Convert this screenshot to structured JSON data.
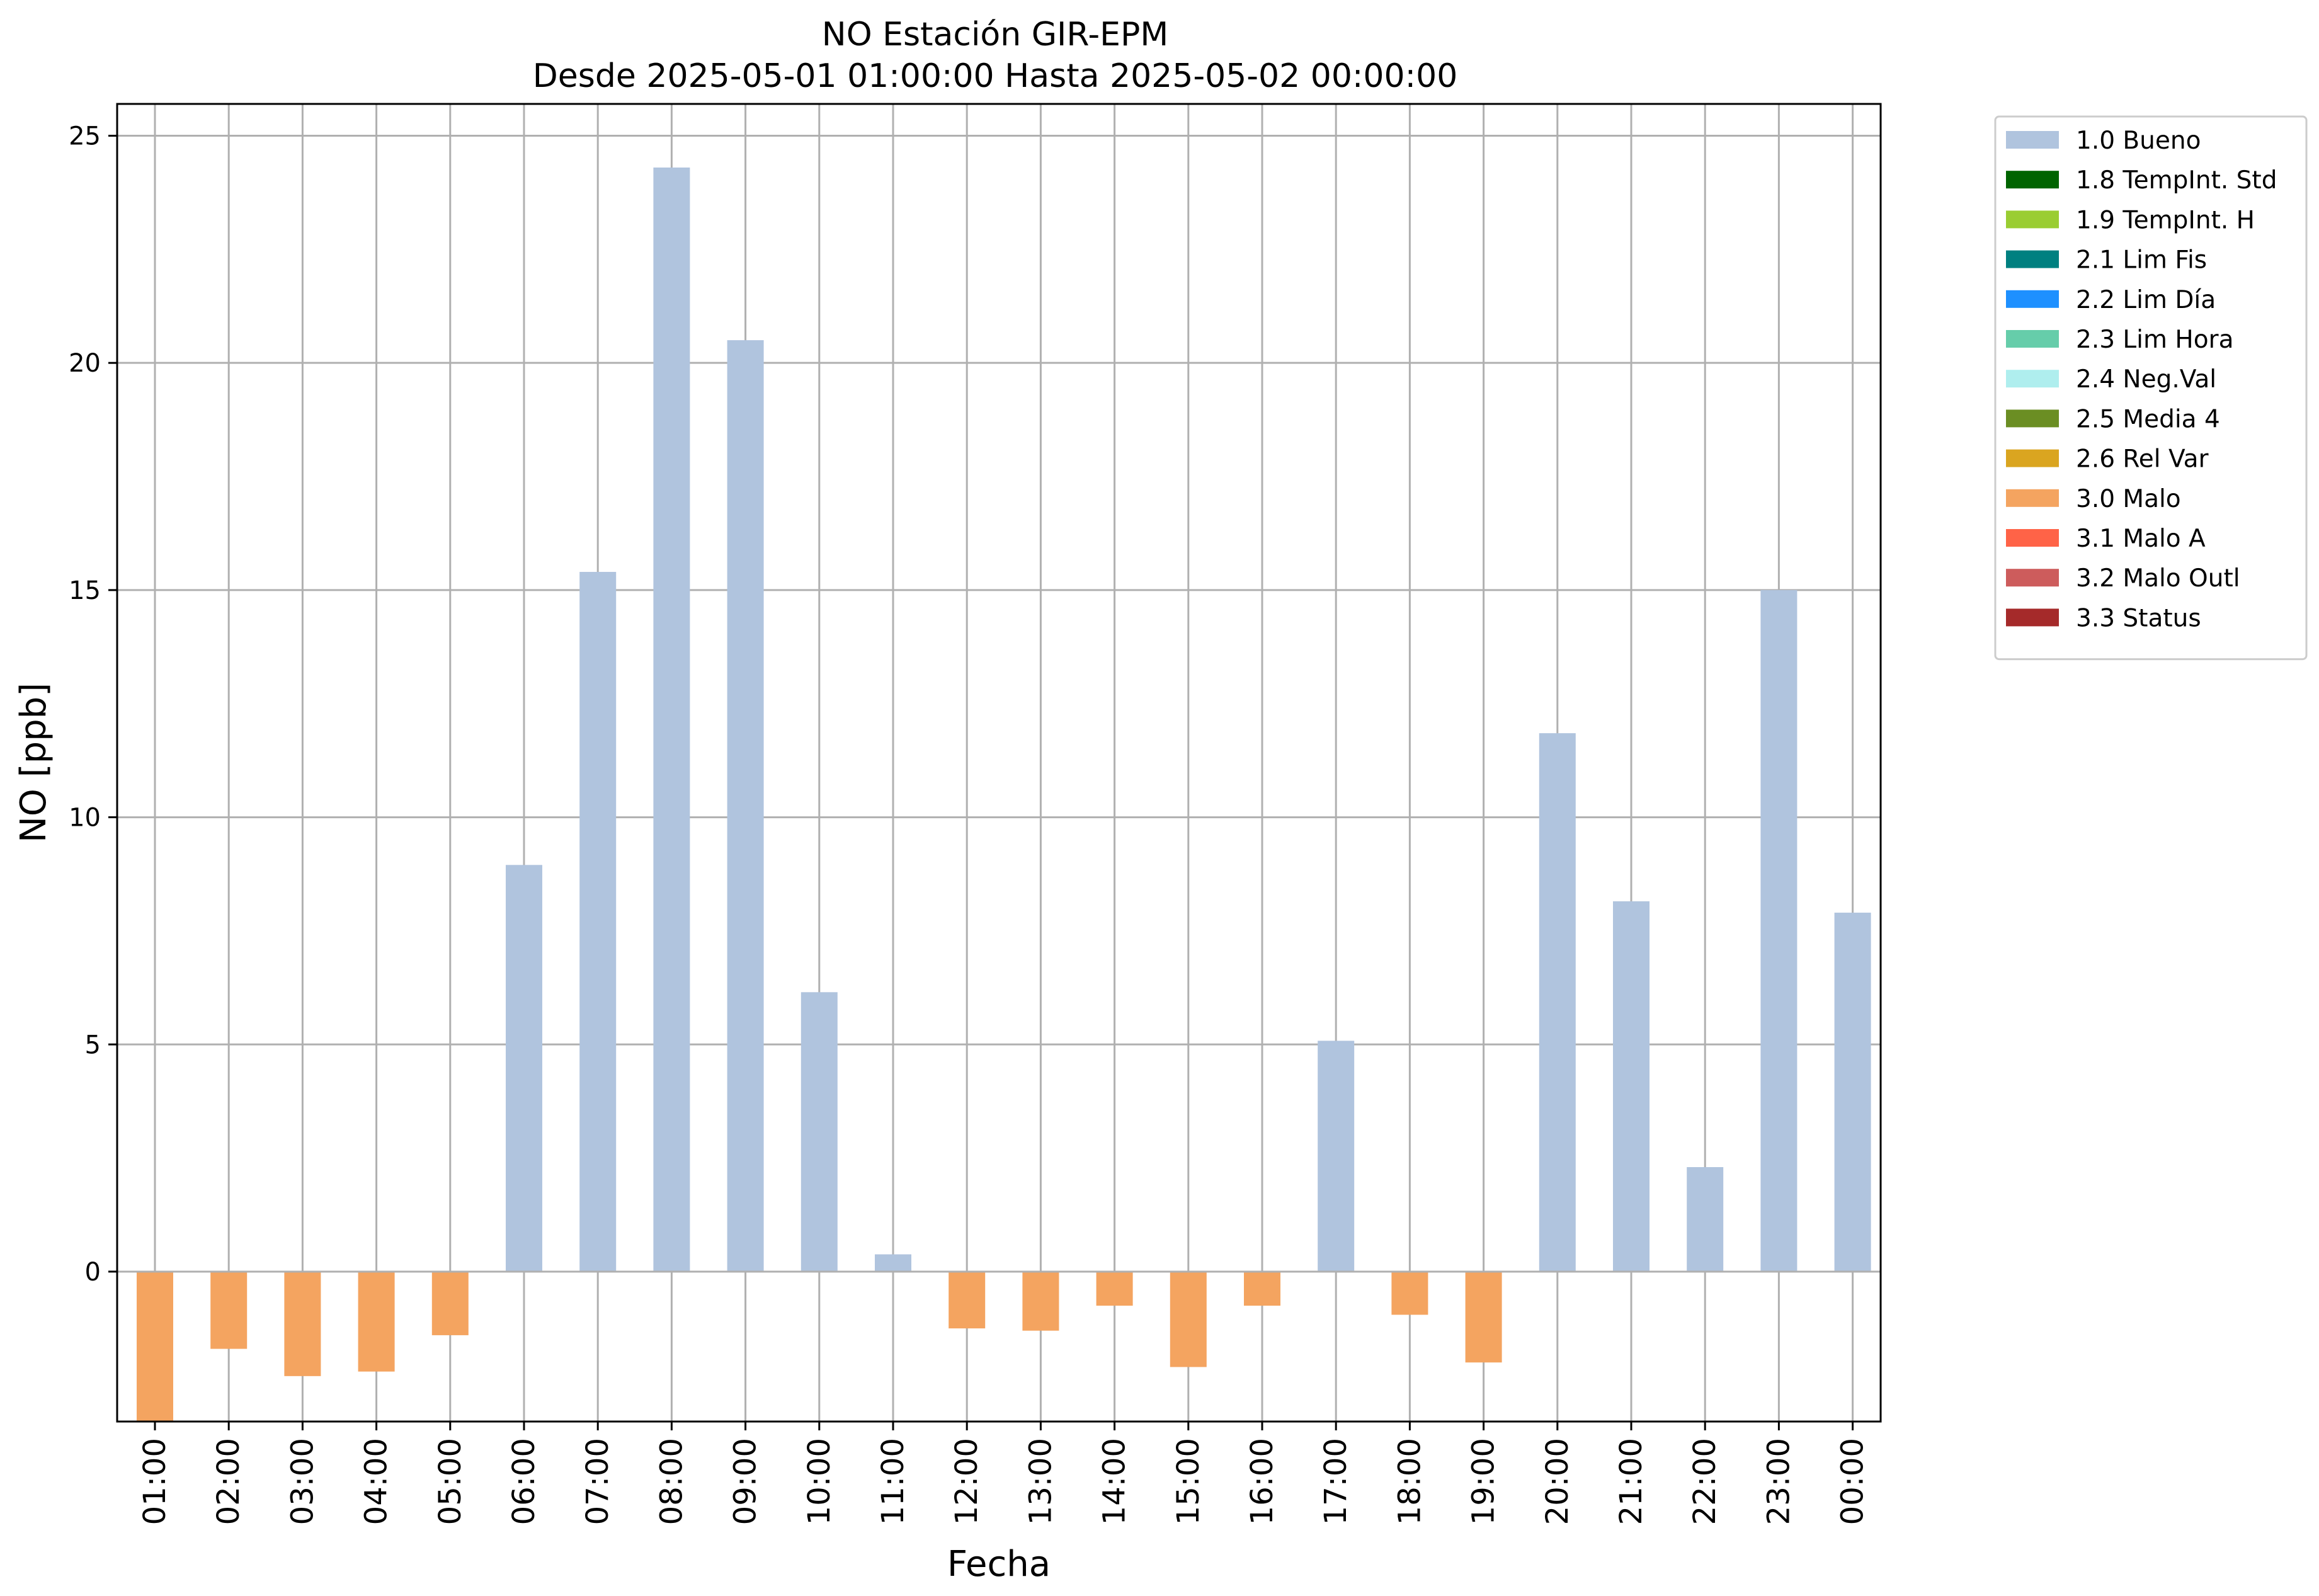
{
  "chart_data": {
    "type": "bar",
    "title": "NO Estación GIR-EPM",
    "subtitle": "Desde 2025-05-01 01:00:00 Hasta 2025-05-02 00:00:00",
    "xlabel": "Fecha",
    "ylabel": "NO [ppb]",
    "ylim": [
      -3.3,
      25.7
    ],
    "yticks": [
      0,
      5,
      10,
      15,
      20,
      25
    ],
    "grid": true,
    "legend_position": "outside-right",
    "categories": [
      "01:00",
      "02:00",
      "03:00",
      "04:00",
      "05:00",
      "06:00",
      "07:00",
      "08:00",
      "09:00",
      "10:00",
      "11:00",
      "12:00",
      "13:00",
      "14:00",
      "15:00",
      "16:00",
      "17:00",
      "18:00",
      "19:00",
      "20:00",
      "21:00",
      "22:00",
      "23:00",
      "00:00"
    ],
    "values": [
      -3.3,
      -1.7,
      -2.3,
      -2.2,
      -1.4,
      8.95,
      15.4,
      24.3,
      20.5,
      6.15,
      0.38,
      -1.25,
      -1.3,
      -0.75,
      -2.1,
      -0.75,
      5.08,
      -0.95,
      -2.0,
      11.85,
      8.15,
      2.3,
      15.0,
      7.9
    ],
    "flags": [
      "3.0 Malo",
      "3.0 Malo",
      "3.0 Malo",
      "3.0 Malo",
      "3.0 Malo",
      "1.0 Bueno",
      "1.0 Bueno",
      "1.0 Bueno",
      "1.0 Bueno",
      "1.0 Bueno",
      "1.0 Bueno",
      "3.0 Malo",
      "3.0 Malo",
      "3.0 Malo",
      "3.0 Malo",
      "3.0 Malo",
      "1.0 Bueno",
      "3.0 Malo",
      "3.0 Malo",
      "1.0 Bueno",
      "1.0 Bueno",
      "1.0 Bueno",
      "1.0 Bueno",
      "1.0 Bueno"
    ],
    "legend": [
      {
        "label": "1.0 Bueno",
        "color": "#b0c4de"
      },
      {
        "label": "1.8 TempInt. Std",
        "color": "#006400"
      },
      {
        "label": "1.9 TempInt. H",
        "color": "#9acd32"
      },
      {
        "label": "2.1 Lim Fis",
        "color": "#008080"
      },
      {
        "label": "2.2 Lim Día",
        "color": "#1e90ff"
      },
      {
        "label": "2.3 Lim Hora",
        "color": "#66cdaa"
      },
      {
        "label": "2.4 Neg.Val",
        "color": "#afeeee"
      },
      {
        "label": "2.5 Media 4",
        "color": "#6b8e23"
      },
      {
        "label": "2.6 Rel Var",
        "color": "#daa520"
      },
      {
        "label": "3.0 Malo",
        "color": "#f4a460"
      },
      {
        "label": "3.1 Malo A",
        "color": "#ff6347"
      },
      {
        "label": "3.2 Malo Outl",
        "color": "#cd5c5c"
      },
      {
        "label": "3.3 Status",
        "color": "#a52a2a"
      }
    ]
  }
}
